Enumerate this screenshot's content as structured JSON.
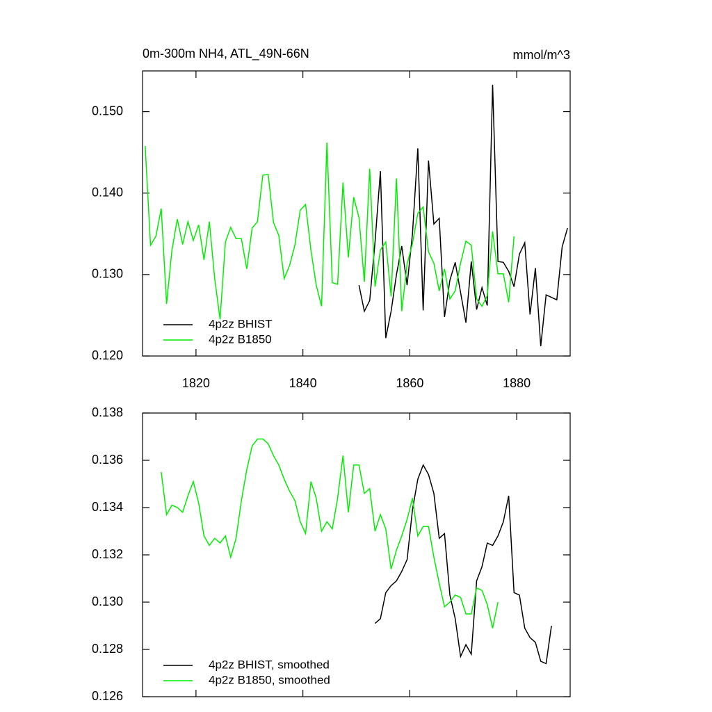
{
  "chart_data": [
    {
      "type": "line",
      "title": "0m-300m NH4, ATL_49N-66N",
      "subtitle": "mmol/m^3",
      "x": [
        1810.5,
        1811.5,
        1812.5,
        1813.5,
        1814.5,
        1815.5,
        1816.5,
        1817.5,
        1818.5,
        1819.5,
        1820.5,
        1821.5,
        1822.5,
        1823.5,
        1824.5,
        1825.5,
        1826.5,
        1827.5,
        1828.5,
        1829.5,
        1830.5,
        1831.5,
        1832.5,
        1833.5,
        1834.5,
        1835.5,
        1836.5,
        1837.5,
        1838.5,
        1839.5,
        1840.5,
        1841.5,
        1842.5,
        1843.5,
        1844.5,
        1845.5,
        1846.5,
        1847.5,
        1848.5,
        1849.5,
        1850.5,
        1851.5,
        1852.5,
        1853.5,
        1854.5,
        1855.5,
        1856.5,
        1857.5,
        1858.5,
        1859.5,
        1860.5,
        1861.5,
        1862.5,
        1863.5,
        1864.5,
        1865.5,
        1866.5,
        1867.5,
        1868.5,
        1869.5,
        1870.5,
        1871.5,
        1872.5,
        1873.5,
        1874.5,
        1875.5,
        1876.5,
        1877.5,
        1878.5,
        1879.5,
        1880.5,
        1881.5,
        1882.5,
        1883.5,
        1884.5,
        1885.5,
        1886.5,
        1887.5,
        1888.5,
        1889.5
      ],
      "series": [
        {
          "name": "4p2z BHIST",
          "color": "#000000",
          "values": [
            null,
            null,
            null,
            null,
            null,
            null,
            null,
            null,
            null,
            null,
            null,
            null,
            null,
            null,
            null,
            null,
            null,
            null,
            null,
            null,
            null,
            null,
            null,
            null,
            null,
            null,
            null,
            null,
            null,
            null,
            null,
            null,
            null,
            null,
            null,
            null,
            null,
            null,
            null,
            null,
            0.1287,
            0.1255,
            0.1268,
            0.134,
            0.1427,
            0.1222,
            0.1255,
            0.13,
            0.1335,
            0.1287,
            0.135,
            0.1455,
            0.1256,
            0.144,
            0.1362,
            0.1369,
            0.1248,
            0.1293,
            0.1315,
            0.1278,
            0.1241,
            0.1316,
            0.1257,
            0.1284,
            0.1262,
            0.1533,
            0.1316,
            0.1315,
            0.1304,
            0.1285,
            0.1325,
            0.1339,
            0.1251,
            0.1308,
            0.1212,
            0.1275,
            0.1272,
            0.1269,
            0.1334,
            0.1357
          ]
        },
        {
          "name": "4p2z B1850",
          "color": "#00ee00",
          "values": [
            0.1458,
            0.1336,
            0.1347,
            0.1381,
            0.1264,
            0.133,
            0.1368,
            0.1337,
            0.1365,
            0.1342,
            0.1361,
            0.1318,
            0.1365,
            0.1295,
            0.1245,
            0.134,
            0.1358,
            0.1344,
            0.1344,
            0.1307,
            0.1357,
            0.1365,
            0.1422,
            0.1423,
            0.1364,
            0.1348,
            0.1295,
            0.1311,
            0.1336,
            0.1379,
            0.1386,
            0.133,
            0.1287,
            0.1261,
            0.1462,
            0.129,
            0.1288,
            0.1413,
            0.1321,
            0.1395,
            0.137,
            0.1291,
            0.143,
            0.1285,
            0.133,
            0.134,
            0.1273,
            0.1418,
            0.1255,
            0.1313,
            0.1338,
            0.1375,
            0.1383,
            0.1328,
            0.1314,
            0.128,
            0.1307,
            0.127,
            0.128,
            0.1314,
            0.1341,
            0.1336,
            0.127,
            0.1261,
            0.1274,
            0.1353,
            0.1301,
            0.1301,
            0.1266,
            0.1347,
            null,
            null,
            null,
            null,
            null,
            null,
            null,
            null,
            null,
            null
          ]
        }
      ],
      "xlim": [
        1810,
        1890
      ],
      "xticks": [
        1820,
        1840,
        1860,
        1880
      ],
      "ylim": [
        0.12,
        0.155
      ],
      "yticks": [
        {
          "value": 0.12,
          "label": "0.120"
        },
        {
          "value": 0.13,
          "label": "0.130"
        },
        {
          "value": 0.14,
          "label": "0.140"
        },
        {
          "value": 0.15,
          "label": "0.150"
        }
      ],
      "legend": "lower left"
    },
    {
      "type": "line",
      "x": [
        1810.5,
        1811.5,
        1812.5,
        1813.5,
        1814.5,
        1815.5,
        1816.5,
        1817.5,
        1818.5,
        1819.5,
        1820.5,
        1821.5,
        1822.5,
        1823.5,
        1824.5,
        1825.5,
        1826.5,
        1827.5,
        1828.5,
        1829.5,
        1830.5,
        1831.5,
        1832.5,
        1833.5,
        1834.5,
        1835.5,
        1836.5,
        1837.5,
        1838.5,
        1839.5,
        1840.5,
        1841.5,
        1842.5,
        1843.5,
        1844.5,
        1845.5,
        1846.5,
        1847.5,
        1848.5,
        1849.5,
        1850.5,
        1851.5,
        1852.5,
        1853.5,
        1854.5,
        1855.5,
        1856.5,
        1857.5,
        1858.5,
        1859.5,
        1860.5,
        1861.5,
        1862.5,
        1863.5,
        1864.5,
        1865.5,
        1866.5,
        1867.5,
        1868.5,
        1869.5,
        1870.5,
        1871.5,
        1872.5,
        1873.5,
        1874.5,
        1875.5,
        1876.5,
        1877.5,
        1878.5,
        1879.5,
        1880.5,
        1881.5,
        1882.5,
        1883.5,
        1884.5,
        1885.5,
        1886.5,
        1887.5,
        1888.5,
        1889.5
      ],
      "series": [
        {
          "name": "4p2z BHIST, smoothed",
          "color": "#000000",
          "values": [
            null,
            null,
            null,
            null,
            null,
            null,
            null,
            null,
            null,
            null,
            null,
            null,
            null,
            null,
            null,
            null,
            null,
            null,
            null,
            null,
            null,
            null,
            null,
            null,
            null,
            null,
            null,
            null,
            null,
            null,
            null,
            null,
            null,
            null,
            null,
            null,
            null,
            null,
            null,
            null,
            null,
            null,
            null,
            0.1291,
            0.1293,
            0.1304,
            0.1307,
            0.1309,
            0.1313,
            0.1318,
            0.1339,
            0.1352,
            0.1358,
            0.1354,
            0.1346,
            0.1327,
            0.1329,
            0.1303,
            0.1293,
            0.1277,
            0.1282,
            0.1278,
            0.1309,
            0.1315,
            0.1325,
            0.1324,
            0.1328,
            0.1334,
            0.1345,
            0.1304,
            0.1303,
            0.1289,
            0.1285,
            0.1283,
            0.1275,
            0.1274,
            0.129,
            null,
            null,
            null
          ]
        },
        {
          "name": "4p2z B1850, smoothed",
          "color": "#00ee00",
          "values": [
            null,
            null,
            null,
            0.1355,
            0.1337,
            0.1341,
            0.134,
            0.1338,
            0.1345,
            0.1351,
            0.1342,
            0.1328,
            0.1324,
            0.1327,
            0.1325,
            0.1328,
            0.1319,
            0.1327,
            0.1343,
            0.1356,
            0.1366,
            0.1369,
            0.1369,
            0.1367,
            0.1362,
            0.1358,
            0.1352,
            0.1347,
            0.1343,
            0.1334,
            0.1329,
            0.1351,
            0.1344,
            0.133,
            0.1334,
            0.1331,
            0.1344,
            0.1362,
            0.1338,
            0.1358,
            0.1358,
            0.1346,
            0.1348,
            0.133,
            0.1337,
            0.1331,
            0.1314,
            0.1322,
            0.1328,
            0.1335,
            0.1344,
            0.1328,
            0.1332,
            0.1332,
            0.1319,
            0.1308,
            0.1298,
            0.13,
            0.1303,
            0.1302,
            0.1295,
            0.1295,
            0.1306,
            0.1305,
            0.1299,
            0.1289,
            0.13,
            null,
            null,
            null,
            null,
            null,
            null,
            null,
            null,
            null,
            null,
            null,
            null,
            null
          ]
        }
      ],
      "xlim": [
        1810,
        1890
      ],
      "xticks": [
        1820,
        1840,
        1860,
        1880
      ],
      "ylim": [
        0.126,
        0.138
      ],
      "yticks": [
        0.126,
        0.128,
        {
          "value": 0.13,
          "label": "0.130"
        },
        0.132,
        0.134,
        0.136,
        0.138
      ],
      "legend": "lower left"
    }
  ]
}
